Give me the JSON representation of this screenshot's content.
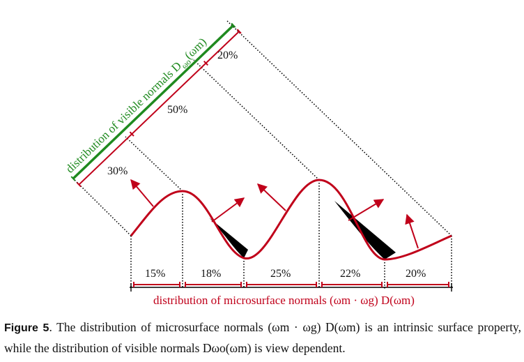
{
  "figure": {
    "visible_label": "distribution of visible normals D",
    "visible_sub": "ωo",
    "visible_arg": "(ωm)",
    "visible_percents": [
      "20%",
      "50%",
      "30%"
    ],
    "micro_percents": [
      "15%",
      "18%",
      "25%",
      "22%",
      "20%"
    ],
    "micro_label": "distribution of microsurface normals (ωm · ωg) D(ωm)",
    "colors": {
      "surface": "#c0001a",
      "visible_axis": "#1f8a1f",
      "shadow": "#000000",
      "dotted": "#000000"
    }
  },
  "caption": {
    "label": "Figure 5",
    "text_1": "The distribution of microsurface normals",
    "formula_1": "(ωm · ωg) D(ωm)",
    "text_2": "is an intrinsic surface property, while the distribution of visible normals",
    "formula_2": "Dωo(ωm)",
    "text_3": "is view dependent."
  }
}
